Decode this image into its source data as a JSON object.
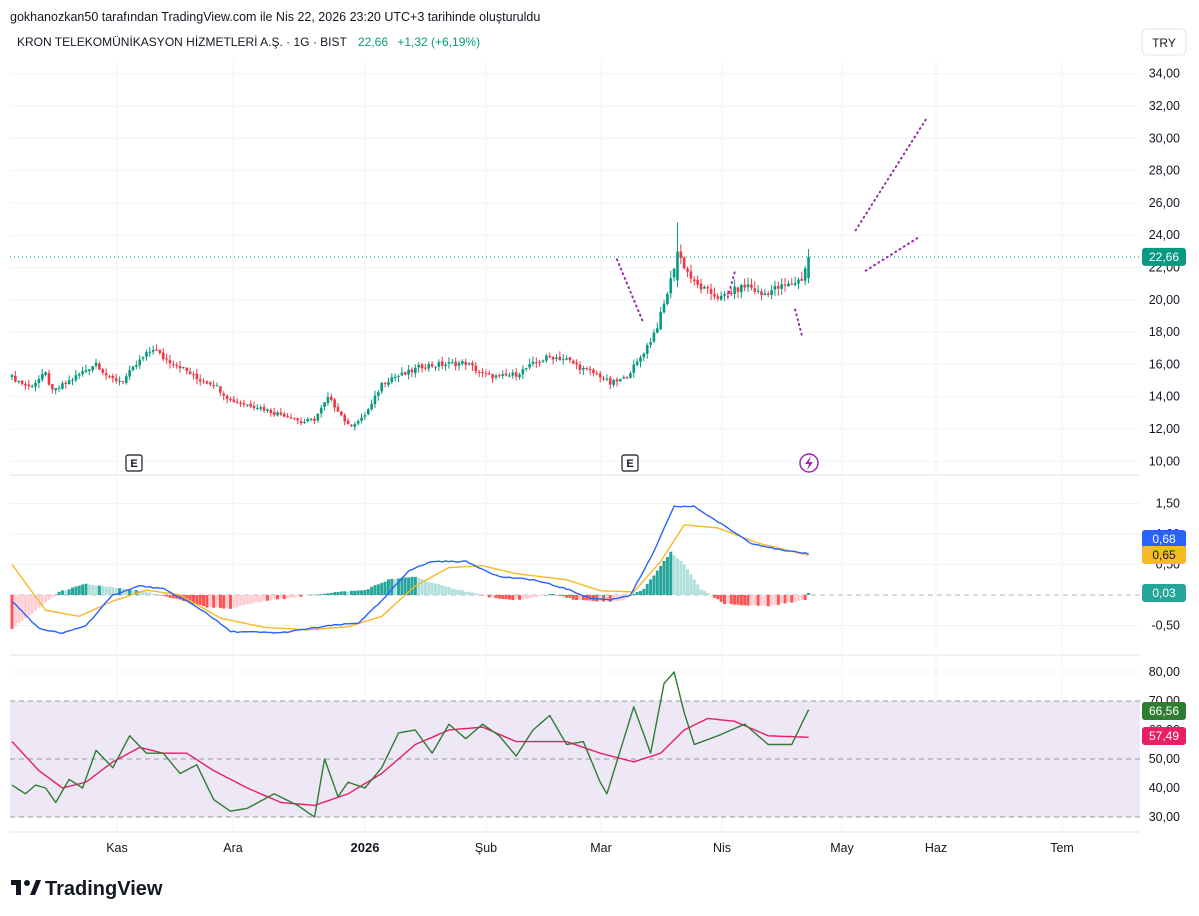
{
  "header": {
    "credit": "gokhanozkan50 tarafından TradingView.com ile Nis 22, 2026 23:20 UTC+3 tarihinde oluşturuldu",
    "symbol": "KRON TELEKOMÜNİKASYON HİZMETLERİ A.Ş. · 1G · BIST",
    "last_price": "22,66",
    "change": "+1,32 (+6,19%)",
    "currency": "TRY"
  },
  "logo": {
    "text": "TradingView"
  },
  "colors": {
    "up": "#089981",
    "down": "#f23645",
    "grid": "#f0f3fa",
    "pattern": "#9c27b0",
    "macd": "#2962ff",
    "signal": "#f7b924",
    "hist_up_strong": "#26a69a",
    "hist_up_weak": "#b2dfdb",
    "hist_down_strong": "#ff5252",
    "hist_down_weak": "#ffcdd2",
    "rsi": "#2e7d32",
    "rsi_ma": "#e91e63",
    "rsi_band": "#ede7f6"
  },
  "chart_data": [
    {
      "type": "candlestick",
      "pane": "price",
      "x_axis": {
        "labels": [
          "Kas",
          "Ara",
          "2026",
          "Şub",
          "Mar",
          "Nis",
          "May",
          "Haz",
          "Tem"
        ],
        "bold": "2026"
      },
      "y_axis": {
        "range": [
          9,
          35.5
        ],
        "ticks": [
          "34,00",
          "32,00",
          "30,00",
          "28,00",
          "26,00",
          "24,00",
          "22,00",
          "20,00",
          "18,00",
          "16,00",
          "14,00",
          "12,00",
          "10,00"
        ]
      },
      "current_price_label": "22,66",
      "earnings_markers": [
        "E",
        "E"
      ],
      "anchors": [
        [
          0,
          15.2
        ],
        [
          5,
          14.6
        ],
        [
          10,
          15.4
        ],
        [
          12,
          14.3
        ],
        [
          18,
          15.1
        ],
        [
          25,
          16.1
        ],
        [
          29,
          15.1
        ],
        [
          33,
          15.0
        ],
        [
          38,
          16.2
        ],
        [
          42,
          17.0
        ],
        [
          45,
          16.4
        ],
        [
          50,
          15.9
        ],
        [
          55,
          15.1
        ],
        [
          60,
          14.8
        ],
        [
          65,
          13.8
        ],
        [
          68,
          13.6
        ],
        [
          73,
          13.4
        ],
        [
          78,
          13.0
        ],
        [
          83,
          12.8
        ],
        [
          86,
          12.4
        ],
        [
          90,
          12.6
        ],
        [
          94,
          13.9
        ],
        [
          97,
          13.2
        ],
        [
          100,
          12.2
        ],
        [
          104,
          12.6
        ],
        [
          107,
          13.5
        ],
        [
          110,
          14.8
        ],
        [
          113,
          15.2
        ],
        [
          117,
          15.4
        ],
        [
          122,
          15.9
        ],
        [
          128,
          16.0
        ],
        [
          135,
          16.1
        ],
        [
          140,
          15.4
        ],
        [
          145,
          15.2
        ],
        [
          150,
          15.4
        ],
        [
          155,
          16.0
        ],
        [
          160,
          16.5
        ],
        [
          165,
          16.3
        ],
        [
          170,
          15.7
        ],
        [
          175,
          15.3
        ],
        [
          178,
          14.8
        ],
        [
          182,
          15.1
        ],
        [
          186,
          16.1
        ],
        [
          190,
          17.5
        ],
        [
          192,
          18.4
        ],
        [
          194,
          19.7
        ],
        [
          196,
          21.2
        ],
        [
          198,
          23.0
        ],
        [
          200,
          22.1
        ],
        [
          203,
          21.0
        ],
        [
          207,
          20.5
        ],
        [
          211,
          20.1
        ],
        [
          215,
          20.6
        ],
        [
          219,
          20.9
        ],
        [
          223,
          20.3
        ],
        [
          227,
          20.7
        ],
        [
          231,
          20.9
        ],
        [
          235,
          21.3
        ],
        [
          237,
          22.66
        ]
      ]
    },
    {
      "type": "line",
      "pane": "pattern",
      "series": [
        {
          "name": "",
          "points": [
            [
              0,
              22.5
            ],
            [
              8,
              18.5
            ],
            [
              35,
              21.7
            ],
            [
              33,
              20.2
            ],
            [
              53,
              19.4
            ],
            [
              55,
              17.8
            ],
            [
              74,
              21.8
            ],
            [
              90,
              23.9
            ],
            [
              71,
              24.3
            ],
            [
              92,
              31.2
            ]
          ]
        }
      ]
    },
    {
      "type": "bar",
      "pane": "macd",
      "y_axis": {
        "ticks": [
          "1,50",
          "1,00",
          "0,50",
          "-0,50"
        ]
      },
      "value_labels": {
        "macd": "0,68",
        "signal": "0,65",
        "histogram": "0,03"
      },
      "macd": [
        [
          0,
          -0.1
        ],
        [
          8,
          -0.55
        ],
        [
          15,
          -0.63
        ],
        [
          22,
          -0.5
        ],
        [
          30,
          0.0
        ],
        [
          38,
          0.15
        ],
        [
          45,
          0.1
        ],
        [
          52,
          -0.1
        ],
        [
          58,
          -0.3
        ],
        [
          65,
          -0.6
        ],
        [
          80,
          -0.62
        ],
        [
          95,
          -0.5
        ],
        [
          103,
          -0.46
        ],
        [
          110,
          -0.1
        ],
        [
          118,
          0.4
        ],
        [
          125,
          0.55
        ],
        [
          135,
          0.55
        ],
        [
          145,
          0.3
        ],
        [
          155,
          0.25
        ],
        [
          165,
          0.1
        ],
        [
          172,
          -0.05
        ],
        [
          178,
          -0.08
        ],
        [
          184,
          0.0
        ],
        [
          190,
          0.6
        ],
        [
          197,
          1.45
        ],
        [
          203,
          1.45
        ],
        [
          210,
          1.2
        ],
        [
          220,
          0.85
        ],
        [
          230,
          0.72
        ],
        [
          237,
          0.68
        ]
      ],
      "signal": [
        [
          0,
          0.5
        ],
        [
          10,
          -0.25
        ],
        [
          20,
          -0.35
        ],
        [
          30,
          -0.1
        ],
        [
          40,
          0.08
        ],
        [
          50,
          0.0
        ],
        [
          62,
          -0.38
        ],
        [
          75,
          -0.53
        ],
        [
          88,
          -0.57
        ],
        [
          100,
          -0.52
        ],
        [
          110,
          -0.35
        ],
        [
          120,
          0.15
        ],
        [
          130,
          0.45
        ],
        [
          140,
          0.48
        ],
        [
          150,
          0.35
        ],
        [
          165,
          0.25
        ],
        [
          175,
          0.07
        ],
        [
          185,
          0.05
        ],
        [
          193,
          0.55
        ],
        [
          200,
          1.15
        ],
        [
          210,
          1.1
        ],
        [
          222,
          0.85
        ],
        [
          237,
          0.65
        ]
      ],
      "histogram": [
        [
          0,
          -0.55
        ],
        [
          6,
          -0.3
        ],
        [
          14,
          0.05
        ],
        [
          22,
          0.18
        ],
        [
          30,
          0.12
        ],
        [
          40,
          0.05
        ],
        [
          48,
          -0.05
        ],
        [
          58,
          -0.2
        ],
        [
          65,
          -0.22
        ],
        [
          75,
          -0.1
        ],
        [
          85,
          -0.03
        ],
        [
          95,
          0.04
        ],
        [
          105,
          0.08
        ],
        [
          112,
          0.25
        ],
        [
          120,
          0.3
        ],
        [
          128,
          0.15
        ],
        [
          136,
          0.05
        ],
        [
          145,
          -0.07
        ],
        [
          152,
          -0.08
        ],
        [
          160,
          0.02
        ],
        [
          168,
          -0.08
        ],
        [
          175,
          -0.11
        ],
        [
          181,
          -0.1
        ],
        [
          188,
          0.1
        ],
        [
          196,
          0.7
        ],
        [
          200,
          0.5
        ],
        [
          205,
          0.1
        ],
        [
          212,
          -0.15
        ],
        [
          225,
          -0.18
        ],
        [
          236,
          -0.08
        ],
        [
          237,
          0.03
        ]
      ]
    },
    {
      "type": "line",
      "pane": "rsi",
      "y_axis": {
        "ticks": [
          "80,00",
          "70,00",
          "60,00",
          "50,00",
          "40,00",
          "30,00"
        ]
      },
      "bands": [
        70,
        50,
        30
      ],
      "value_labels": {
        "rsi": "66,56",
        "rsi_ma": "57,49"
      },
      "series": [
        {
          "name": "",
          "points": [
            [
              0,
              41
            ],
            [
              4,
              38
            ],
            [
              7,
              41
            ],
            [
              10,
              40
            ],
            [
              13,
              35
            ],
            [
              17,
              43
            ],
            [
              21,
              40
            ],
            [
              25,
              53
            ],
            [
              30,
              47
            ],
            [
              35,
              58
            ],
            [
              40,
              52
            ],
            [
              45,
              52
            ],
            [
              50,
              45
            ],
            [
              55,
              48
            ],
            [
              60,
              36
            ],
            [
              65,
              32
            ],
            [
              70,
              33
            ],
            [
              78,
              38
            ],
            [
              85,
              34
            ],
            [
              90,
              30
            ],
            [
              93,
              50
            ],
            [
              97,
              37
            ],
            [
              100,
              42
            ],
            [
              105,
              40
            ],
            [
              110,
              47
            ],
            [
              115,
              59
            ],
            [
              120,
              60
            ],
            [
              125,
              52
            ],
            [
              130,
              62
            ],
            [
              135,
              57
            ],
            [
              140,
              62
            ],
            [
              145,
              58
            ],
            [
              150,
              51
            ],
            [
              155,
              60
            ],
            [
              160,
              65
            ],
            [
              165,
              55
            ],
            [
              170,
              56
            ],
            [
              175,
              42
            ],
            [
              177,
              38
            ],
            [
              181,
              53
            ],
            [
              185,
              68
            ],
            [
              190,
              52
            ],
            [
              194,
              76
            ],
            [
              197,
              80
            ],
            [
              200,
              66
            ],
            [
              203,
              55
            ],
            [
              210,
              58
            ],
            [
              218,
              62
            ],
            [
              225,
              55
            ],
            [
              232,
              55
            ],
            [
              237,
              67
            ]
          ]
        },
        {
          "name": "",
          "points": [
            [
              0,
              56
            ],
            [
              8,
              46
            ],
            [
              15,
              40
            ],
            [
              22,
              42
            ],
            [
              30,
              49
            ],
            [
              38,
              54
            ],
            [
              45,
              52
            ],
            [
              52,
              52
            ],
            [
              60,
              46
            ],
            [
              70,
              40
            ],
            [
              80,
              35
            ],
            [
              90,
              34
            ],
            [
              100,
              38
            ],
            [
              110,
              45
            ],
            [
              120,
              55
            ],
            [
              130,
              60
            ],
            [
              140,
              61
            ],
            [
              150,
              56
            ],
            [
              165,
              56
            ],
            [
              175,
              52
            ],
            [
              185,
              49
            ],
            [
              193,
              52
            ],
            [
              200,
              60
            ],
            [
              207,
              64
            ],
            [
              215,
              63
            ],
            [
              225,
              58
            ],
            [
              237,
              57.5
            ]
          ]
        }
      ]
    }
  ]
}
